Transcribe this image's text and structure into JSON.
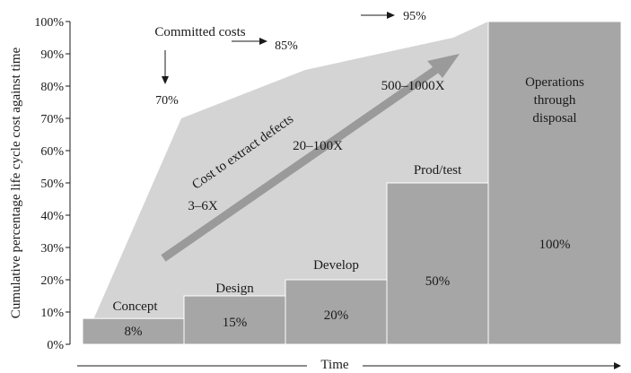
{
  "chart_data": {
    "type": "area",
    "title": "",
    "xlabel": "Time",
    "ylabel": "Cumulative percentage life cycle cost against time",
    "ylim": [
      0,
      100
    ],
    "y_ticks": [
      "0%",
      "10%",
      "20%",
      "30%",
      "40%",
      "50%",
      "60%",
      "70%",
      "80%",
      "90%",
      "100%"
    ],
    "committed_costs": {
      "label": "Committed costs",
      "values": [
        0,
        70,
        85,
        95,
        100,
        100
      ],
      "annotations": [
        {
          "label": "70%",
          "value": 70
        },
        {
          "label": "85%",
          "value": 85
        },
        {
          "label": "95%",
          "value": 95
        }
      ]
    },
    "phases": [
      {
        "name": "Concept",
        "value": 8,
        "value_label": "8%"
      },
      {
        "name": "Design",
        "value": 15,
        "value_label": "15%"
      },
      {
        "name": "Develop",
        "value": 20,
        "value_label": "20%"
      },
      {
        "name": "Prod/test",
        "value": 50,
        "value_label": "50%"
      },
      {
        "name": "Operations through disposal",
        "name_lines": [
          "Operations",
          "through",
          "disposal"
        ],
        "value": 100,
        "value_label": "100%"
      }
    ],
    "defect_cost_arrow": {
      "label": "Cost to extract defects",
      "multipliers": [
        "3–6X",
        "20–100X",
        "500–1000X"
      ]
    },
    "colors": {
      "committed_area": "#d4d4d4",
      "bars": "#a6a6a6",
      "arrow": "#9a9a9a",
      "text": "#1a1a1a"
    }
  }
}
